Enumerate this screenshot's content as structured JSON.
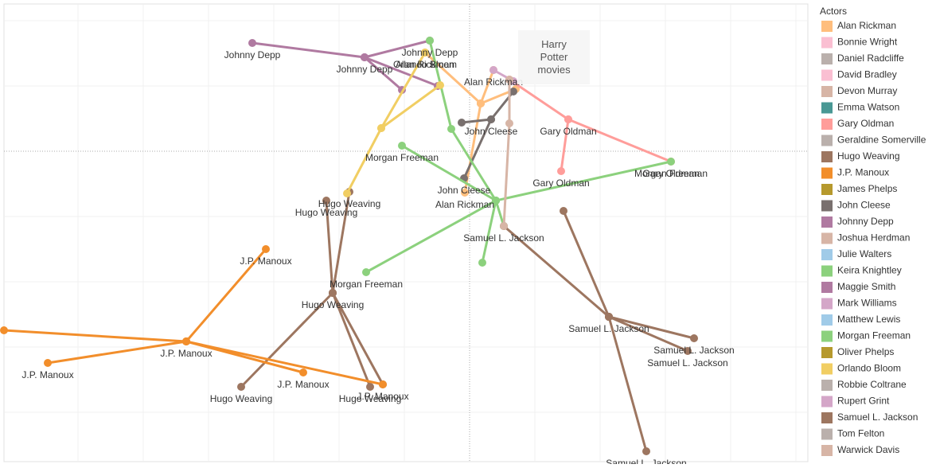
{
  "chart_data": {
    "type": "line",
    "xlim": [
      5,
      1015
    ],
    "ylim": [
      580,
      5
    ],
    "grid": true,
    "xticks": [
      98,
      180,
      262,
      344,
      426,
      508,
      672,
      754,
      836,
      918,
      1000
    ],
    "yticks": [
      26,
      108,
      272,
      354,
      436,
      518
    ],
    "reference_lines": {
      "x": 590,
      "y": 190
    },
    "annotation": "Harry Potter movies",
    "legend_title": "Actors",
    "series": [
      {
        "name": "Alan Rickman",
        "color": "#ffbe7d",
        "x": [
          534,
          604,
          620,
          604,
          584,
          604,
          648
        ],
        "y": [
          66,
          130,
          88,
          130,
          242,
          130,
          112
        ],
        "labels": [
          "Alan Rickman",
          null,
          "Alan Rickman",
          null,
          "Alan Rickman",
          null,
          null
        ]
      },
      {
        "name": "Bonnie Wright",
        "color": "#fabfd2",
        "x": [],
        "y": [],
        "labels": []
      },
      {
        "name": "Daniel Radcliffe",
        "color": "#bab0ac",
        "x": [],
        "y": [],
        "labels": []
      },
      {
        "name": "David Bradley",
        "color": "#fabfd2",
        "x": [],
        "y": [],
        "labels": []
      },
      {
        "name": "Devon Murray",
        "color": "#d7b5a6",
        "x": [],
        "y": [],
        "labels": []
      },
      {
        "name": "Emma Watson",
        "color": "#499894",
        "x": [],
        "y": [],
        "labels": []
      },
      {
        "name": "Gary Oldman",
        "color": "#ff9d9a",
        "x": [
          843,
          714,
          705,
          714,
          640
        ],
        "y": [
          203,
          150,
          215,
          150,
          100
        ],
        "labels": [
          "Gary Oldman",
          "Gary Oldman",
          "Gary Oldman",
          null,
          null
        ]
      },
      {
        "name": "Geraldine Somerville",
        "color": "#bab0ac",
        "x": [],
        "y": [],
        "labels": []
      },
      {
        "name": "Hugo Weaving",
        "color": "#9d7660",
        "x": [
          410,
          418,
          439,
          418,
          303,
          418,
          465,
          418,
          481
        ],
        "y": [
          252,
          368,
          241,
          368,
          486,
          368,
          486,
          368,
          483
        ],
        "labels": [
          "Hugo Weaving",
          "Hugo Weaving",
          "Hugo Weaving",
          null,
          "Hugo Weaving",
          null,
          "Hugo Weaving",
          null,
          null
        ]
      },
      {
        "name": "J.P. Manoux",
        "color": "#f28e2b",
        "x": [
          334,
          234,
          5,
          234,
          60,
          234,
          381,
          234,
          481
        ],
        "y": [
          313,
          429,
          415,
          429,
          456,
          429,
          468,
          429,
          483
        ],
        "labels": [
          "J.P. Manoux",
          "J.P. Manoux",
          null,
          null,
          "J.P. Manoux",
          null,
          "J.P. Manoux",
          null,
          "J.P. Manoux"
        ]
      },
      {
        "name": "James Phelps",
        "color": "#b6992d",
        "x": [],
        "y": [],
        "labels": []
      },
      {
        "name": "John Cleese",
        "color": "#79706e",
        "x": [
          580,
          617,
          583,
          617,
          645
        ],
        "y": [
          154,
          150,
          224,
          150,
          115
        ],
        "labels": [
          null,
          "John Cleese",
          "John Cleese",
          null,
          null
        ]
      },
      {
        "name": "Johnny Depp",
        "color": "#b07aa1",
        "x": [
          317,
          458,
          540,
          458,
          550,
          458,
          505
        ],
        "y": [
          54,
          72,
          51,
          72,
          108,
          72,
          113
        ],
        "labels": [
          "Johnny Depp",
          "Johnny Depp",
          "Johnny Depp",
          null,
          null,
          null,
          null
        ]
      },
      {
        "name": "Joshua Herdman",
        "color": "#d7b5a6",
        "x": [],
        "y": [],
        "labels": []
      },
      {
        "name": "Julie Walters",
        "color": "#a0cbe8",
        "x": [],
        "y": [],
        "labels": []
      },
      {
        "name": "Keira Knightley",
        "color": "#8cd17d",
        "x": [
          540,
          567,
          623,
          633,
          623,
          606
        ],
        "y": [
          51,
          162,
          252,
          284,
          252,
          330
        ],
        "labels": [
          null,
          null,
          null,
          null,
          null,
          null
        ]
      },
      {
        "name": "Maggie Smith",
        "color": "#b07aa1",
        "x": [],
        "y": [],
        "labels": []
      },
      {
        "name": "Mark Williams",
        "color": "#d4a6c8",
        "x": [],
        "y": [],
        "labels": []
      },
      {
        "name": "Matthew Lewis",
        "color": "#a0cbe8",
        "x": [],
        "y": [],
        "labels": []
      },
      {
        "name": "Morgan Freeman",
        "color": "#8cd17d",
        "x": [
          505,
          623,
          460,
          623,
          843
        ],
        "y": [
          183,
          252,
          342,
          252,
          203
        ],
        "labels": [
          "Morgan Freeman",
          null,
          "Morgan Freeman",
          null,
          "Morgan Freeman"
        ]
      },
      {
        "name": "Oliver Phelps",
        "color": "#b6992d",
        "x": [],
        "y": [],
        "labels": []
      },
      {
        "name": "Orlando Bloom",
        "color": "#f1ce63",
        "x": [
          534,
          479,
          436,
          479,
          553
        ],
        "y": [
          66,
          161,
          243,
          161,
          107
        ],
        "labels": [
          "Orlando Bloom",
          null,
          null,
          null,
          null
        ]
      },
      {
        "name": "Robbie Coltrane",
        "color": "#bab0ac",
        "x": [],
        "y": [],
        "labels": []
      },
      {
        "name": "Rupert Grint",
        "color": "#d4a6c8",
        "x": [
          620,
          645
        ],
        "y": [
          88,
          102
        ],
        "labels": [
          null,
          null
        ]
      },
      {
        "name": "Samuel L. Jackson",
        "color": "#9d7660",
        "x": [
          633,
          765,
          708,
          765,
          872,
          765,
          864,
          765,
          812
        ],
        "y": [
          284,
          398,
          265,
          398,
          425,
          398,
          441,
          398,
          567
        ],
        "labels": [
          "Samuel L. Jackson",
          "Samuel L. Jackson",
          null,
          null,
          "Samuel L. Jackson",
          null,
          "Samuel L. Jackson",
          null,
          "Samuel L. Jackson"
        ]
      },
      {
        "name": "Tom Felton",
        "color": "#bab0ac",
        "x": [],
        "y": [],
        "labels": []
      },
      {
        "name": "Warwick Davis",
        "color": "#d7b5a6",
        "x": [
          640,
          640,
          633
        ],
        "y": [
          100,
          155,
          284
        ],
        "labels": [
          null,
          null,
          null
        ]
      }
    ]
  }
}
